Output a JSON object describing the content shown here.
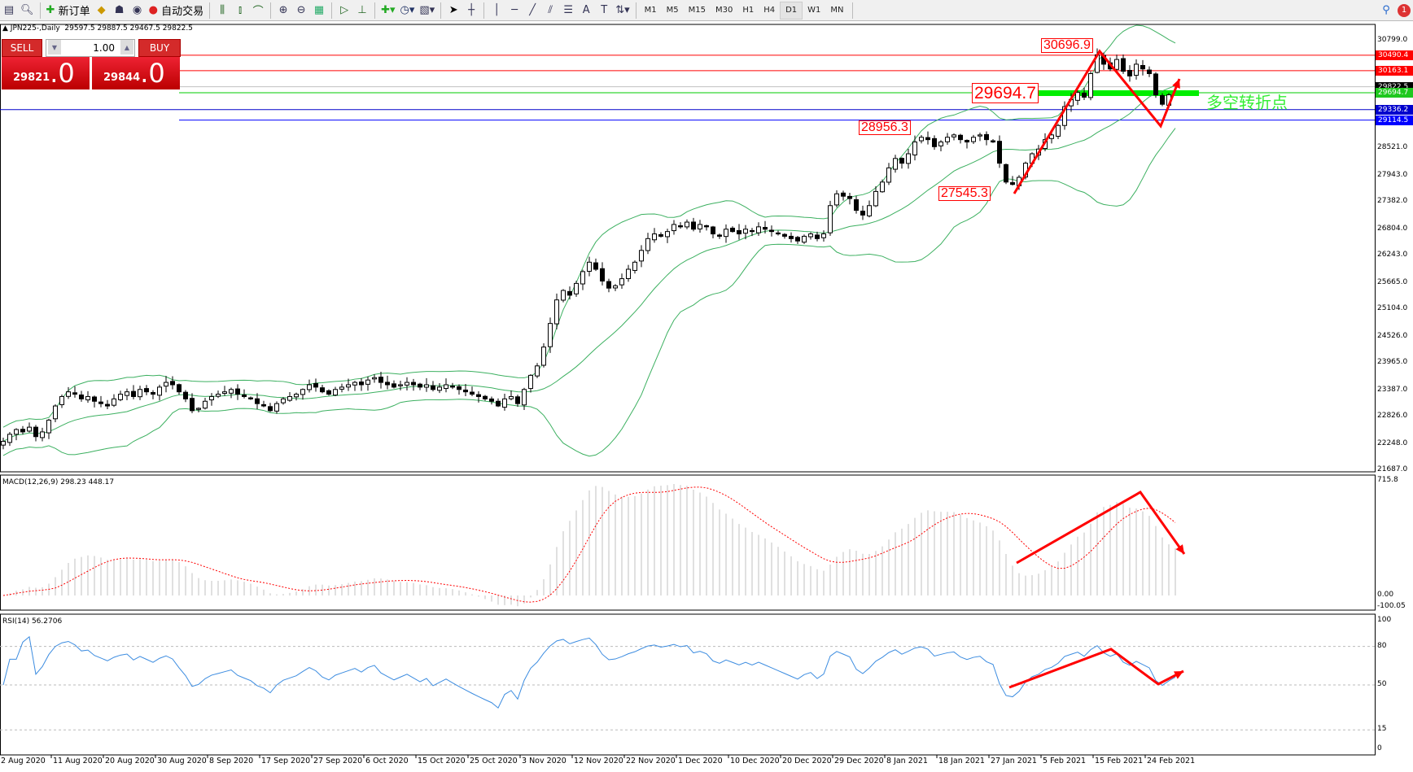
{
  "toolbar": {
    "new_order": "新订单",
    "auto_trading": "自动交易",
    "timeframes": [
      "M1",
      "M5",
      "M15",
      "M30",
      "H1",
      "H4",
      "D1",
      "W1",
      "MN"
    ],
    "active_timeframe": "D1",
    "notification_count": "1"
  },
  "chart_header": {
    "symbol": "JPN225-,Daily",
    "open": "29597.5",
    "high": "29887.5",
    "low": "29467.5",
    "close": "29822.5"
  },
  "trade_panel": {
    "sell_label": "SELL",
    "buy_label": "BUY",
    "lots": "1.00",
    "sell_price_main": "29821",
    "sell_price_big": ".0",
    "buy_price_main": "29844",
    "buy_price_big": ".0"
  },
  "price_axis": {
    "ticks": [
      "30799.0",
      "28521.0",
      "27943.0",
      "27382.0",
      "26804.0",
      "26243.0",
      "25665.0",
      "25104.0",
      "24526.0",
      "23965.0",
      "23387.0",
      "22826.0",
      "22248.0",
      "21687.0"
    ]
  },
  "levels": [
    {
      "value": "30490.4",
      "color": "#ff0000"
    },
    {
      "value": "30163.1",
      "color": "#ff0000"
    },
    {
      "value": "29822.5",
      "color": "#000000"
    },
    {
      "value": "29694.7",
      "color": "#00cc00"
    },
    {
      "value": "29336.2",
      "color": "#0000cc"
    },
    {
      "value": "29114.5",
      "color": "#0000ff"
    }
  ],
  "annotations": {
    "high_label": "30696.9",
    "pivot_label": "29694.7",
    "label_28956": "28956.3",
    "label_27545": "27545.3",
    "pivot_text": "多空转折点"
  },
  "macd": {
    "label": "MACD(12,26,9) 298.23 448.17",
    "ticks": [
      "715.8",
      "0.00",
      "-100.05"
    ]
  },
  "rsi": {
    "label": "RSI(14) 56.2706",
    "ticks": [
      "100",
      "80",
      "50",
      "15",
      "0"
    ]
  },
  "colors": {
    "bollinger": "#3cb060",
    "macd_signal": "#ff0000",
    "macd_hist": "#c0c0c0",
    "rsi": "#3c8ce0",
    "arrows": "#ff0000",
    "pivot_bar": "#00ee00"
  },
  "chart_data": {
    "type": "candlestick",
    "symbol": "JPN225",
    "timeframe": "Daily",
    "ylim": [
      21687,
      30799
    ],
    "date_labels": [
      "2 Aug 2020",
      "11 Aug 2020",
      "20 Aug 2020",
      "30 Aug 2020",
      "8 Sep 2020",
      "17 Sep 2020",
      "27 Sep 2020",
      "6 Oct 2020",
      "15 Oct 2020",
      "25 Oct 2020",
      "3 Nov 2020",
      "12 Nov 2020",
      "22 Nov 2020",
      "1 Dec 2020",
      "10 Dec 2020",
      "20 Dec 2020",
      "29 Dec 2020",
      "8 Jan 2021",
      "18 Jan 2021",
      "27 Jan 2021",
      "5 Feb 2021",
      "15 Feb 2021",
      "24 Feb 2021"
    ],
    "closes": [
      22300,
      22450,
      22550,
      22500,
      22600,
      22400,
      22500,
      22750,
      23050,
      23250,
      23350,
      23300,
      23200,
      23250,
      23150,
      23100,
      23050,
      23200,
      23300,
      23350,
      23250,
      23400,
      23350,
      23300,
      23450,
      23550,
      23500,
      23350,
      23200,
      22950,
      23000,
      23150,
      23250,
      23300,
      23350,
      23400,
      23300,
      23250,
      23200,
      23100,
      23050,
      22950,
      23100,
      23200,
      23250,
      23300,
      23400,
      23500,
      23450,
      23350,
      23300,
      23400,
      23450,
      23500,
      23550,
      23500,
      23600,
      23650,
      23550,
      23500,
      23450,
      23500,
      23550,
      23500,
      23450,
      23500,
      23400,
      23450,
      23500,
      23450,
      23400,
      23350,
      23300,
      23250,
      23200,
      23150,
      23050,
      23200,
      23250,
      23100,
      23400,
      23700,
      23900,
      24300,
      24800,
      25300,
      25500,
      25400,
      25650,
      25900,
      26100,
      25950,
      25700,
      25550,
      25600,
      25750,
      25950,
      26100,
      26350,
      26600,
      26700,
      26650,
      26750,
      26900,
      26850,
      26950,
      26800,
      26900,
      26850,
      26700,
      26650,
      26800,
      26750,
      26700,
      26800,
      26750,
      26850,
      26800,
      26750,
      26700,
      26650,
      26600,
      26550,
      26650,
      26700,
      26600,
      26700,
      27300,
      27550,
      27500,
      27450,
      27200,
      27100,
      27300,
      27600,
      27800,
      28100,
      28300,
      28200,
      28400,
      28650,
      28750,
      28700,
      28550,
      28650,
      28750,
      28800,
      28700,
      28650,
      28750,
      28800,
      28700,
      28650,
      28200,
      27800,
      27750,
      27900,
      28200,
      28400,
      28500,
      28700,
      28800,
      29000,
      29400,
      29550,
      29700,
      29600,
      30100,
      30500,
      30300,
      30200,
      30400,
      30150,
      30050,
      30300,
      30200,
      30100,
      29650,
      29450,
      29650,
      29822.5
    ],
    "last_bar": {
      "open": 29597.5,
      "high": 29887.5,
      "low": 29467.5,
      "close": 29822.5
    },
    "indicators": [
      "Bollinger Bands(20,2)",
      "MACD(12,26,9)",
      "RSI(14)"
    ]
  }
}
